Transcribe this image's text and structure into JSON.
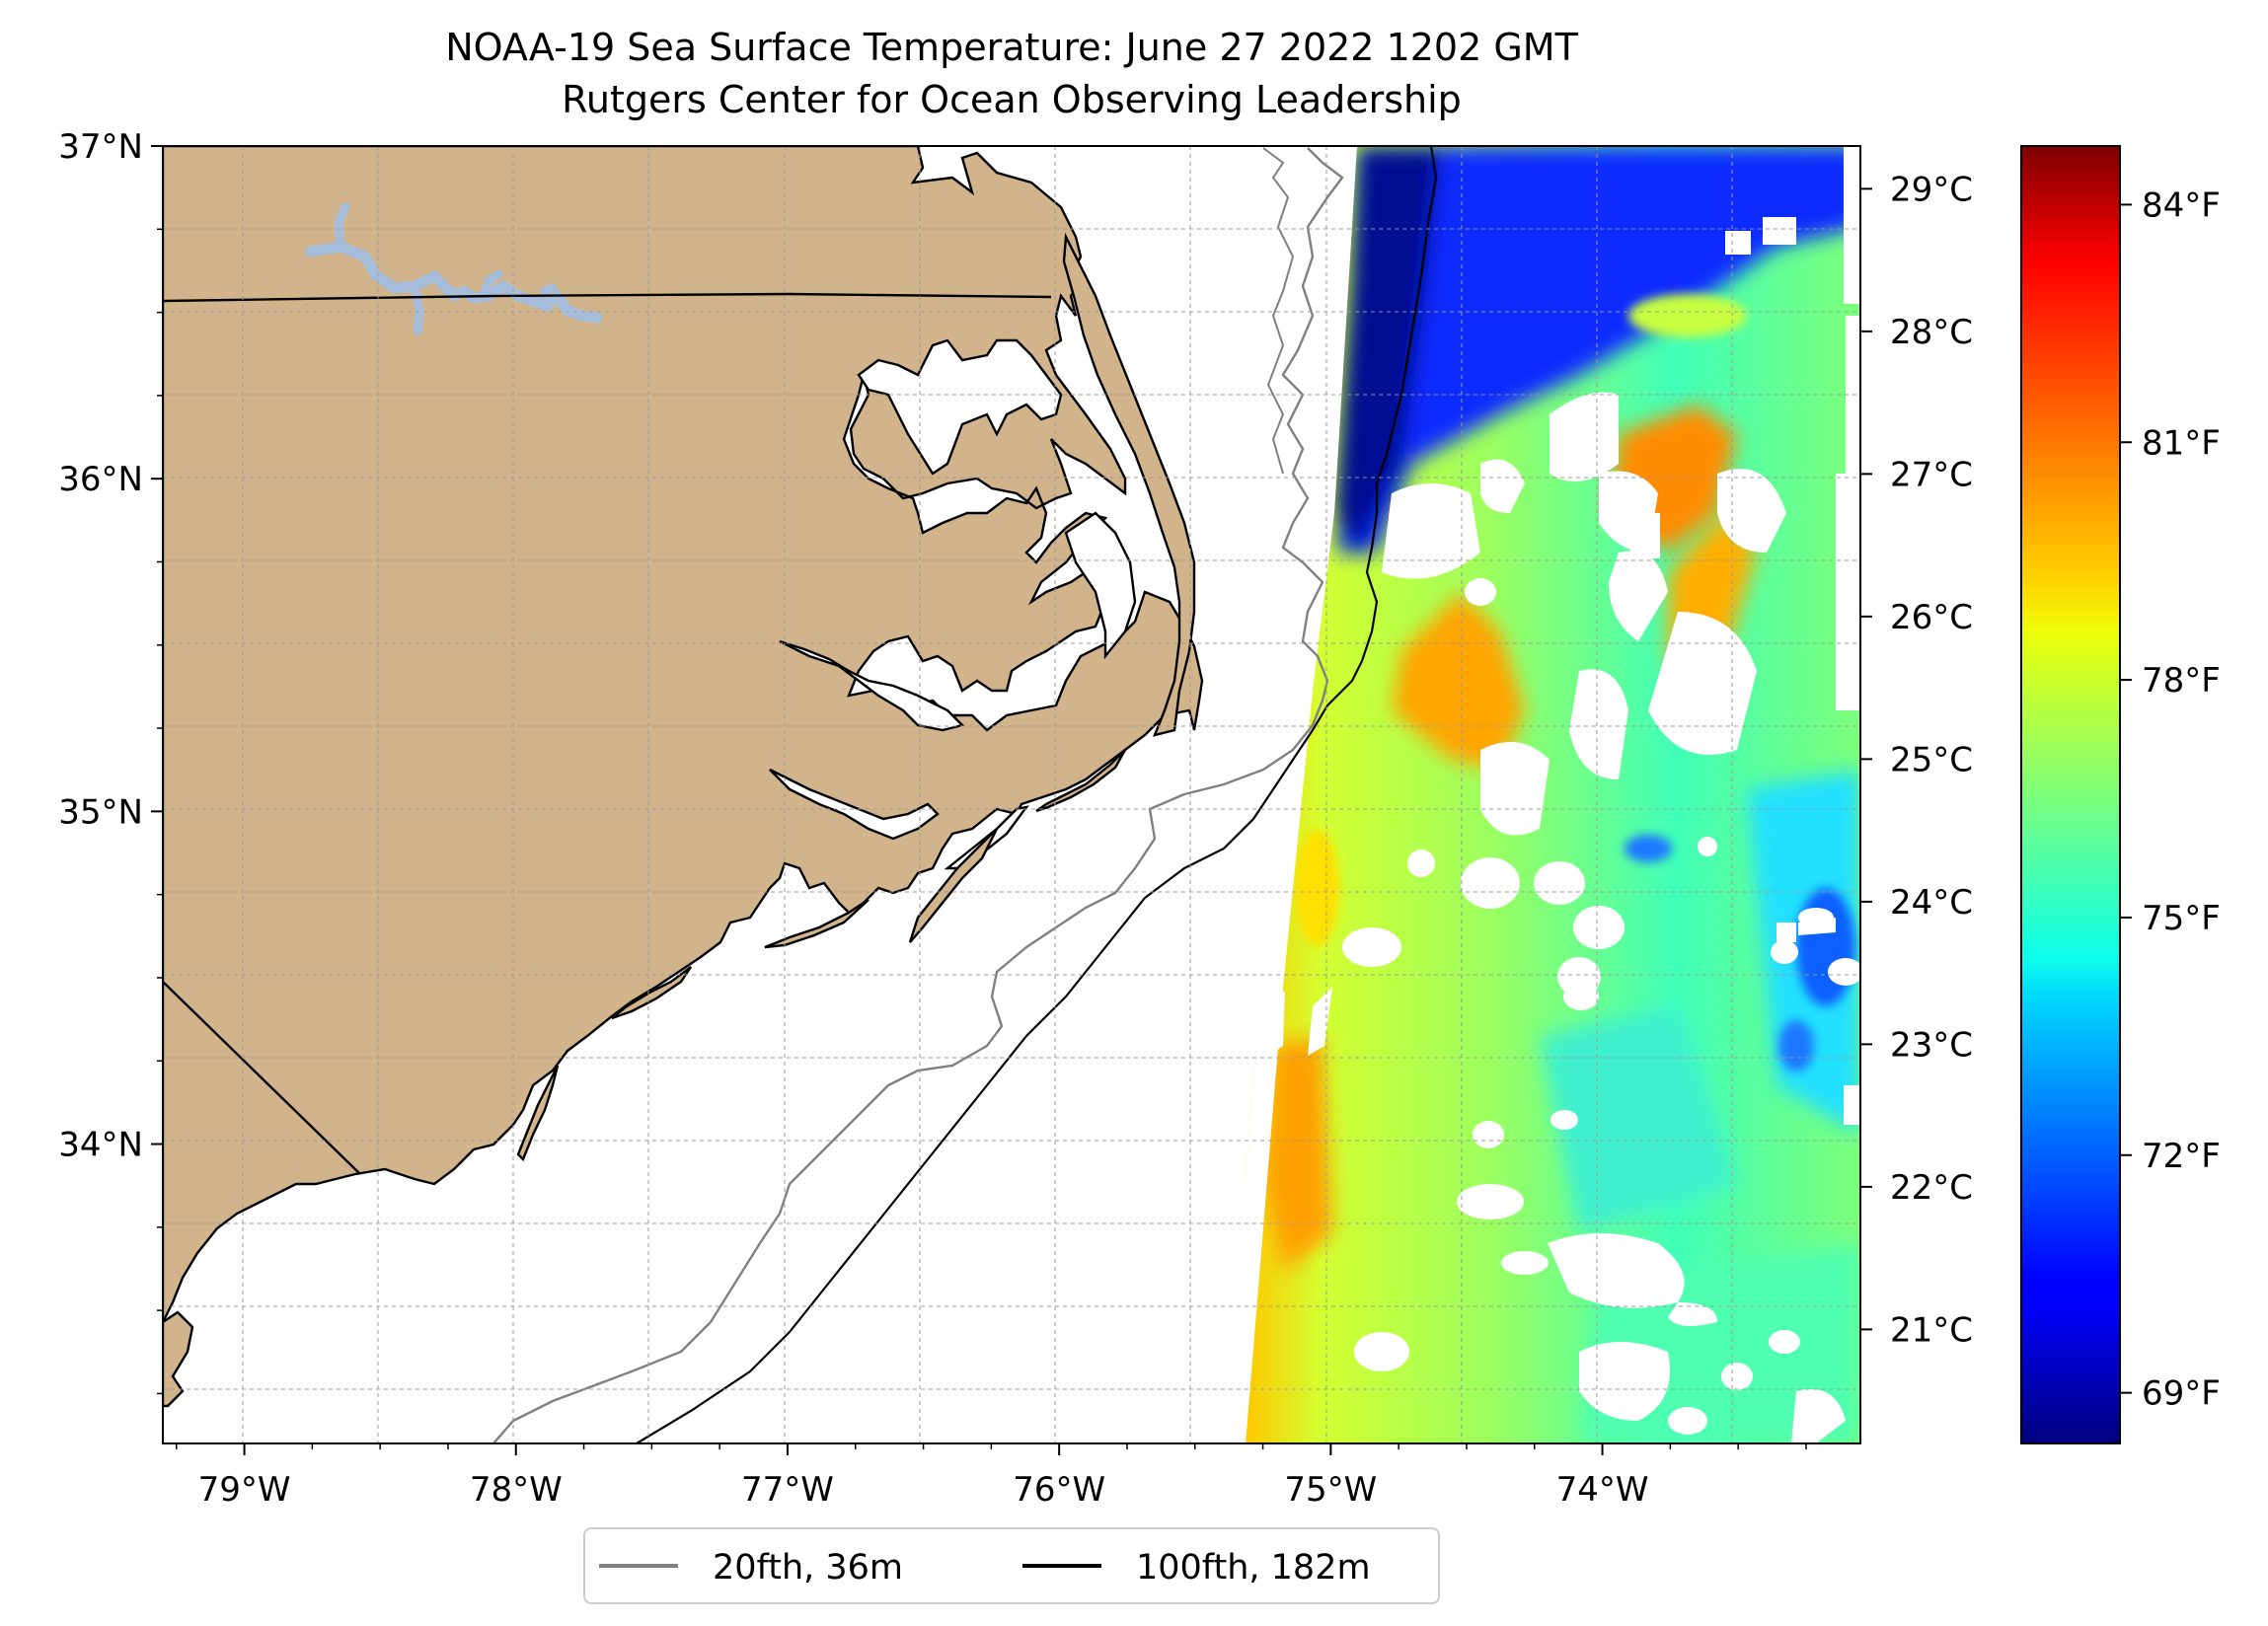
{
  "title": {
    "line1": "NOAA-19 Sea Surface Temperature: June 27 2022 1202 GMT",
    "line2": "Rutgers Center for Ocean Observing Leadership"
  },
  "map": {
    "lon_range": [
      -79.3,
      -73.05
    ],
    "lat_range": [
      33.1,
      37.0
    ],
    "land_color": "#d2b48c",
    "lake_color": "#a6bddb",
    "lon_ticks": [
      {
        "value": -79,
        "label": "79°W"
      },
      {
        "value": -78,
        "label": "78°W"
      },
      {
        "value": -77,
        "label": "77°W"
      },
      {
        "value": -76,
        "label": "76°W"
      },
      {
        "value": -75,
        "label": "75°W"
      },
      {
        "value": -74,
        "label": "74°W"
      }
    ],
    "lat_ticks": [
      {
        "value": 37,
        "label": "37°N"
      },
      {
        "value": 36,
        "label": "36°N"
      },
      {
        "value": 35,
        "label": "35°N"
      },
      {
        "value": 34,
        "label": "34°N"
      }
    ],
    "grid": true
  },
  "colorbar": {
    "colormap": "jet",
    "range_c": [
      20.2,
      29.3
    ],
    "celsius_ticks": [
      {
        "value": 29,
        "label": "29°C"
      },
      {
        "value": 28,
        "label": "28°C"
      },
      {
        "value": 27,
        "label": "27°C"
      },
      {
        "value": 26,
        "label": "26°C"
      },
      {
        "value": 25,
        "label": "25°C"
      },
      {
        "value": 24,
        "label": "24°C"
      },
      {
        "value": 23,
        "label": "23°C"
      },
      {
        "value": 22,
        "label": "22°C"
      },
      {
        "value": 21,
        "label": "21°C"
      }
    ],
    "fahrenheit_ticks": [
      {
        "value": 84,
        "label": "84°F"
      },
      {
        "value": 81,
        "label": "81°F"
      },
      {
        "value": 78,
        "label": "78°F"
      },
      {
        "value": 75,
        "label": "75°F"
      },
      {
        "value": 72,
        "label": "72°F"
      },
      {
        "value": 69,
        "label": "69°F"
      }
    ]
  },
  "legend": {
    "items": [
      {
        "label": "20fth, 36m",
        "color": "#808080"
      },
      {
        "label": "100fth, 182m",
        "color": "#000000"
      }
    ],
    "placement": "bottom-center"
  }
}
